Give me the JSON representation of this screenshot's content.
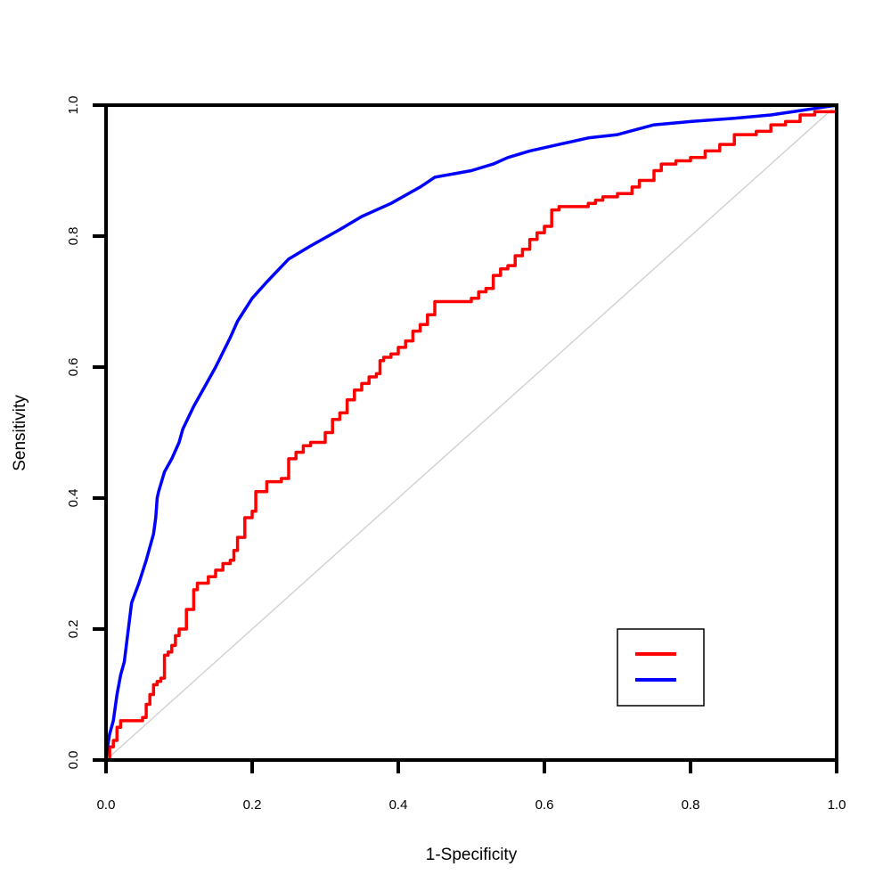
{
  "chart_data": {
    "type": "line",
    "title": "",
    "xlabel": "1-Specificity",
    "ylabel": "Sensitivity",
    "xlim": [
      0,
      1
    ],
    "ylim": [
      0,
      1
    ],
    "grid": false,
    "legend_placement": "bottom-right",
    "x_ticks": [
      "0.0",
      "0.2",
      "0.4",
      "0.6",
      "0.8",
      "1.0"
    ],
    "y_ticks": [
      "0.0",
      "0.2",
      "0.4",
      "0.6",
      "0.8",
      "1.0"
    ],
    "reference_line": {
      "x": [
        0,
        1
      ],
      "y": [
        0,
        1
      ],
      "color": "#d3d3d3"
    },
    "series": [
      {
        "color": "#ff0000",
        "step": true,
        "x": [
          0.0,
          0.005,
          0.01,
          0.015,
          0.02,
          0.03,
          0.05,
          0.055,
          0.06,
          0.065,
          0.07,
          0.075,
          0.08,
          0.085,
          0.09,
          0.095,
          0.1,
          0.11,
          0.12,
          0.125,
          0.13,
          0.14,
          0.15,
          0.16,
          0.17,
          0.175,
          0.18,
          0.19,
          0.2,
          0.205,
          0.22,
          0.24,
          0.25,
          0.26,
          0.27,
          0.28,
          0.3,
          0.31,
          0.32,
          0.33,
          0.34,
          0.35,
          0.36,
          0.37,
          0.375,
          0.38,
          0.39,
          0.4,
          0.41,
          0.42,
          0.43,
          0.44,
          0.45,
          0.48,
          0.5,
          0.51,
          0.52,
          0.53,
          0.54,
          0.55,
          0.56,
          0.57,
          0.58,
          0.59,
          0.6,
          0.61,
          0.62,
          0.65,
          0.66,
          0.67,
          0.68,
          0.7,
          0.72,
          0.73,
          0.75,
          0.76,
          0.78,
          0.8,
          0.82,
          0.84,
          0.86,
          0.89,
          0.91,
          0.93,
          0.95,
          0.97,
          1.0
        ],
        "y": [
          0.0,
          0.02,
          0.03,
          0.05,
          0.06,
          0.06,
          0.065,
          0.085,
          0.1,
          0.115,
          0.12,
          0.125,
          0.16,
          0.165,
          0.175,
          0.19,
          0.2,
          0.23,
          0.26,
          0.27,
          0.27,
          0.28,
          0.29,
          0.3,
          0.305,
          0.32,
          0.34,
          0.37,
          0.38,
          0.41,
          0.425,
          0.43,
          0.46,
          0.47,
          0.48,
          0.485,
          0.5,
          0.52,
          0.53,
          0.55,
          0.565,
          0.575,
          0.585,
          0.59,
          0.61,
          0.615,
          0.62,
          0.63,
          0.64,
          0.655,
          0.665,
          0.68,
          0.7,
          0.7,
          0.705,
          0.715,
          0.72,
          0.74,
          0.75,
          0.755,
          0.77,
          0.78,
          0.795,
          0.805,
          0.815,
          0.84,
          0.845,
          0.845,
          0.85,
          0.855,
          0.86,
          0.865,
          0.875,
          0.885,
          0.9,
          0.91,
          0.915,
          0.92,
          0.93,
          0.94,
          0.955,
          0.96,
          0.97,
          0.975,
          0.985,
          0.99,
          1.0
        ]
      },
      {
        "color": "#0000ff",
        "step": false,
        "x": [
          0.0,
          0.002,
          0.005,
          0.01,
          0.015,
          0.02,
          0.025,
          0.035,
          0.045,
          0.055,
          0.065,
          0.068,
          0.07,
          0.072,
          0.08,
          0.09,
          0.1,
          0.105,
          0.12,
          0.135,
          0.15,
          0.17,
          0.18,
          0.2,
          0.22,
          0.25,
          0.28,
          0.32,
          0.35,
          0.39,
          0.43,
          0.45,
          0.5,
          0.53,
          0.55,
          0.58,
          0.62,
          0.66,
          0.7,
          0.75,
          0.8,
          0.86,
          0.91,
          0.94,
          0.97,
          1.0
        ],
        "y": [
          0.0,
          0.02,
          0.04,
          0.06,
          0.1,
          0.13,
          0.15,
          0.24,
          0.27,
          0.305,
          0.345,
          0.37,
          0.4,
          0.41,
          0.44,
          0.46,
          0.485,
          0.505,
          0.54,
          0.57,
          0.6,
          0.645,
          0.67,
          0.705,
          0.73,
          0.765,
          0.785,
          0.81,
          0.83,
          0.85,
          0.875,
          0.89,
          0.9,
          0.91,
          0.92,
          0.93,
          0.94,
          0.95,
          0.955,
          0.97,
          0.975,
          0.98,
          0.985,
          0.99,
          0.995,
          1.0
        ]
      }
    ]
  }
}
